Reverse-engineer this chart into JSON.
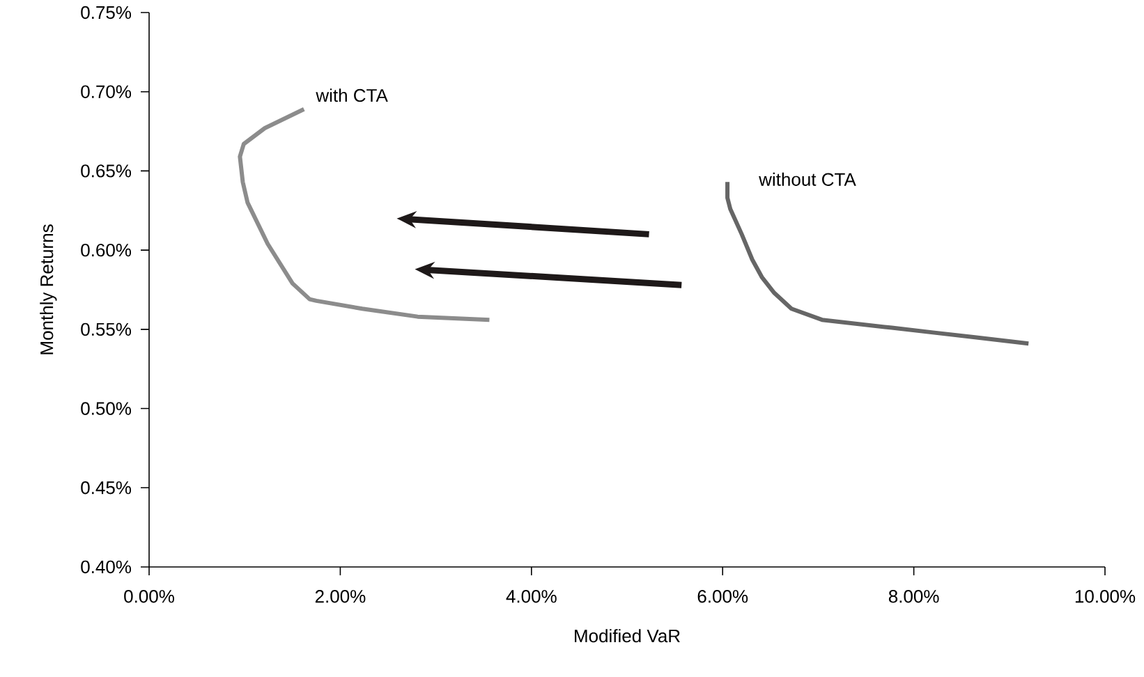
{
  "chart_data": {
    "type": "line",
    "xlabel": "Modified VaR",
    "ylabel": "Monthly Returns",
    "xlim": [
      0,
      10
    ],
    "ylim": [
      0.4,
      0.75
    ],
    "xticks": [
      {
        "value": 0,
        "label": "0.00%"
      },
      {
        "value": 2,
        "label": "2.00%"
      },
      {
        "value": 4,
        "label": "4.00%"
      },
      {
        "value": 6,
        "label": "6.00%"
      },
      {
        "value": 8,
        "label": "8.00%"
      },
      {
        "value": 10,
        "label": "10.00%"
      }
    ],
    "yticks": [
      {
        "value": 0.4,
        "label": "0.40%"
      },
      {
        "value": 0.45,
        "label": "0.45%"
      },
      {
        "value": 0.5,
        "label": "0.50%"
      },
      {
        "value": 0.55,
        "label": "0.55%"
      },
      {
        "value": 0.6,
        "label": "0.60%"
      },
      {
        "value": 0.65,
        "label": "0.65%"
      },
      {
        "value": 0.7,
        "label": "0.70%"
      },
      {
        "value": 0.75,
        "label": "0.75%"
      }
    ],
    "grid": false,
    "legend": false,
    "marker": "none",
    "line_style": "solid",
    "series": [
      {
        "name": "with CTA",
        "color": "#8c8c8c",
        "x": [
          1.62,
          1.21,
          0.99,
          0.95,
          0.98,
          1.03,
          1.24,
          1.5,
          1.68,
          1.75,
          2.23,
          2.81,
          3.56
        ],
        "values": [
          0.689,
          0.677,
          0.667,
          0.659,
          0.643,
          0.63,
          0.604,
          0.579,
          0.569,
          0.568,
          0.563,
          0.558,
          0.556
        ]
      },
      {
        "name": "without CTA",
        "color": "#666666",
        "x": [
          6.05,
          6.05,
          6.08,
          6.2,
          6.31,
          6.41,
          6.54,
          6.72,
          7.04,
          7.77,
          8.2,
          8.64,
          9.2
        ],
        "values": [
          0.643,
          0.633,
          0.626,
          0.61,
          0.594,
          0.583,
          0.573,
          0.563,
          0.556,
          0.551,
          0.548,
          0.545,
          0.541
        ]
      }
    ]
  }
}
